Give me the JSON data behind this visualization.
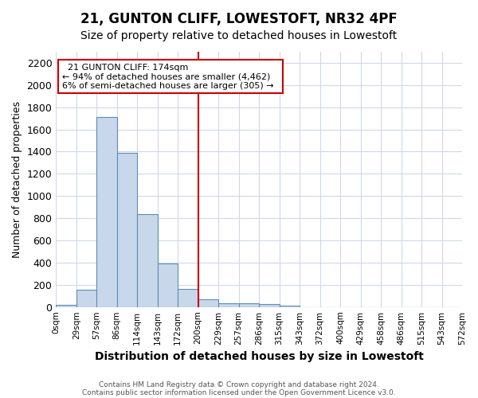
{
  "title": "21, GUNTON CLIFF, LOWESTOFT, NR32 4PF",
  "subtitle": "Size of property relative to detached houses in Lowestoft",
  "xlabel": "Distribution of detached houses by size in Lowestoft",
  "ylabel": "Number of detached properties",
  "footer_line1": "Contains HM Land Registry data © Crown copyright and database right 2024.",
  "footer_line2": "Contains public sector information licensed under the Open Government Licence v3.0.",
  "bin_labels": [
    "0sqm",
    "29sqm",
    "57sqm",
    "86sqm",
    "114sqm",
    "143sqm",
    "172sqm",
    "200sqm",
    "229sqm",
    "257sqm",
    "286sqm",
    "315sqm",
    "343sqm",
    "372sqm",
    "400sqm",
    "429sqm",
    "458sqm",
    "486sqm",
    "515sqm",
    "543sqm",
    "572sqm"
  ],
  "bar_values": [
    20,
    155,
    1710,
    1390,
    835,
    390,
    160,
    70,
    30,
    30,
    25,
    10,
    0,
    0,
    0,
    0,
    0,
    0,
    0,
    0
  ],
  "bar_color": "#c8d8ea",
  "bar_edge_color": "#5b8db8",
  "vline_x_idx": 6,
  "vline_color": "#cc0000",
  "annotation_title": "21 GUNTON CLIFF: 174sqm",
  "annotation_line1": "← 94% of detached houses are smaller (4,462)",
  "annotation_line2": "6% of semi-detached houses are larger (305) →",
  "annotation_box_color": "white",
  "annotation_box_edge": "#cc0000",
  "ylim": [
    0,
    2300
  ],
  "yticks": [
    0,
    200,
    400,
    600,
    800,
    1000,
    1200,
    1400,
    1600,
    1800,
    2000,
    2200
  ],
  "background_color": "#ffffff",
  "grid_color": "#d0d8e8",
  "title_fontsize": 12,
  "subtitle_fontsize": 10
}
